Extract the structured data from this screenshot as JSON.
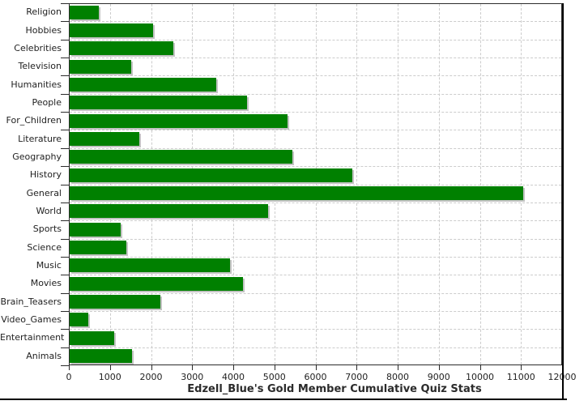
{
  "chart_data": {
    "type": "bar",
    "orientation": "horizontal",
    "title": "Edzell_Blue's Gold Member Cumulative Quiz Stats",
    "categories": [
      "Religion",
      "Hobbies",
      "Celebrities",
      "Television",
      "Humanities",
      "People",
      "For_Children",
      "Literature",
      "Geography",
      "History",
      "General",
      "World",
      "Sports",
      "Science",
      "Music",
      "Movies",
      "Brain_Teasers",
      "Video_Games",
      "Entertainment",
      "Animals"
    ],
    "values": [
      720,
      2040,
      2530,
      1500,
      3570,
      4320,
      5320,
      1710,
      5440,
      6890,
      11070,
      4840,
      1240,
      1380,
      3910,
      4240,
      2220,
      460,
      1090,
      1530
    ],
    "xlabel": "",
    "ylabel": "",
    "xlim": [
      0,
      12000
    ],
    "x_tick_interval": 1000,
    "x_tick_labels": [
      "0",
      "1000",
      "2000",
      "3000",
      "4000",
      "5000",
      "6000",
      "7000",
      "8000",
      "9000",
      "10000",
      "11000",
      "12000"
    ],
    "grid": "dashed",
    "legend": "none",
    "colors": {
      "bar": "#008000",
      "bar_shadow": "#c3c3c3",
      "gridline": "#cccccc",
      "axis": "#2b2b2b",
      "text": "#222222",
      "background": "#ffffff",
      "frame_line": "#000000"
    }
  }
}
